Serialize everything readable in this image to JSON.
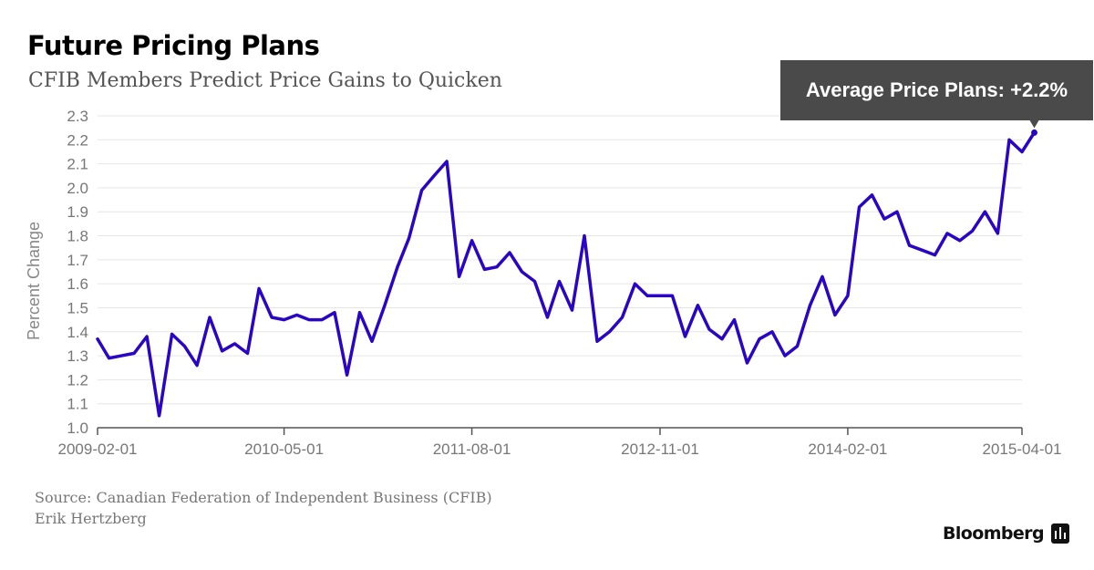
{
  "header": {
    "title": "Future Pricing Plans",
    "subtitle": "CFIB Members Predict Price Gains to Quicken"
  },
  "callout": {
    "text": "Average Price Plans: +2.2%"
  },
  "footer": {
    "source": "Source: Canadian Federation of Independent Business (CFIB)",
    "author": "Erik Hertzberg",
    "brand": "Bloomberg"
  },
  "colors": {
    "line": "#2a06c4",
    "callout_bg": "#4a4a4a",
    "grid": "#e6e6e6"
  },
  "chart_data": {
    "type": "line",
    "title": "Future Pricing Plans",
    "subtitle": "CFIB Members Predict Price Gains to Quicken",
    "xlabel": "",
    "ylabel": "Percent Change",
    "ylim": [
      1.0,
      2.3
    ],
    "yticks": [
      "1.0",
      "1.1",
      "1.2",
      "1.3",
      "1.4",
      "1.5",
      "1.6",
      "1.7",
      "1.8",
      "1.9",
      "2.0",
      "2.1",
      "2.2",
      "2.3"
    ],
    "xticks": [
      "2009-02-01",
      "2010-05-01",
      "2011-08-01",
      "2012-11-01",
      "2014-02-01",
      "2015-04-01"
    ],
    "grid": true,
    "series": [
      {
        "values": [
          [
            "2009-02-01",
            1.37
          ],
          [
            "2009-03-01",
            1.29
          ],
          [
            "2009-05-01",
            1.31
          ],
          [
            "2009-06-01",
            1.38
          ],
          [
            "2009-07-01",
            1.05
          ],
          [
            "2009-08-01",
            1.39
          ],
          [
            "2009-09-01",
            1.34
          ],
          [
            "2009-10-01",
            1.26
          ],
          [
            "2009-11-01",
            1.46
          ],
          [
            "2009-12-01",
            1.32
          ],
          [
            "2010-01-01",
            1.35
          ],
          [
            "2010-02-01",
            1.31
          ],
          [
            "2010-03-01",
            1.58
          ],
          [
            "2010-04-01",
            1.46
          ],
          [
            "2010-05-01",
            1.45
          ],
          [
            "2010-06-01",
            1.47
          ],
          [
            "2010-07-01",
            1.45
          ],
          [
            "2010-08-01",
            1.45
          ],
          [
            "2010-09-01",
            1.48
          ],
          [
            "2010-10-01",
            1.22
          ],
          [
            "2010-11-01",
            1.48
          ],
          [
            "2010-12-01",
            1.36
          ],
          [
            "2011-01-01",
            1.51
          ],
          [
            "2011-02-01",
            1.67
          ],
          [
            "2011-03-01",
            1.79
          ],
          [
            "2011-04-01",
            1.99
          ],
          [
            "2011-05-01",
            2.05
          ],
          [
            "2011-06-01",
            2.11
          ],
          [
            "2011-07-01",
            1.63
          ],
          [
            "2011-08-01",
            1.78
          ],
          [
            "2011-09-01",
            1.66
          ],
          [
            "2011-10-01",
            1.67
          ],
          [
            "2011-11-01",
            1.73
          ],
          [
            "2011-12-01",
            1.65
          ],
          [
            "2012-01-01",
            1.61
          ],
          [
            "2012-02-01",
            1.46
          ],
          [
            "2012-03-01",
            1.61
          ],
          [
            "2012-04-01",
            1.49
          ],
          [
            "2012-05-01",
            1.8
          ],
          [
            "2012-06-01",
            1.36
          ],
          [
            "2012-07-01",
            1.4
          ],
          [
            "2012-08-01",
            1.46
          ],
          [
            "2012-09-01",
            1.6
          ],
          [
            "2012-10-01",
            1.55
          ],
          [
            "2012-11-01",
            1.55
          ],
          [
            "2012-12-01",
            1.55
          ],
          [
            "2013-01-01",
            1.38
          ],
          [
            "2013-02-01",
            1.51
          ],
          [
            "2013-03-01",
            1.41
          ],
          [
            "2013-04-01",
            1.37
          ],
          [
            "2013-05-01",
            1.45
          ],
          [
            "2013-06-01",
            1.27
          ],
          [
            "2013-07-01",
            1.37
          ],
          [
            "2013-08-01",
            1.4
          ],
          [
            "2013-09-01",
            1.3
          ],
          [
            "2013-10-01",
            1.34
          ],
          [
            "2013-11-01",
            1.51
          ],
          [
            "2013-12-01",
            1.63
          ],
          [
            "2014-01-01",
            1.47
          ],
          [
            "2014-02-01",
            1.55
          ],
          [
            "2014-03-01",
            1.92
          ],
          [
            "2014-04-01",
            1.97
          ],
          [
            "2014-05-01",
            1.87
          ],
          [
            "2014-06-01",
            1.9
          ],
          [
            "2014-07-01",
            1.76
          ],
          [
            "2014-08-01",
            1.74
          ],
          [
            "2014-09-01",
            1.72
          ],
          [
            "2014-10-01",
            1.81
          ],
          [
            "2014-11-01",
            1.78
          ],
          [
            "2014-12-01",
            1.82
          ],
          [
            "2015-01-01",
            1.9
          ],
          [
            "2015-02-01",
            1.81
          ],
          [
            "2015-03-01",
            2.2
          ],
          [
            "2015-04-01",
            2.15
          ],
          [
            "2015-05-01",
            2.23
          ]
        ]
      }
    ]
  }
}
